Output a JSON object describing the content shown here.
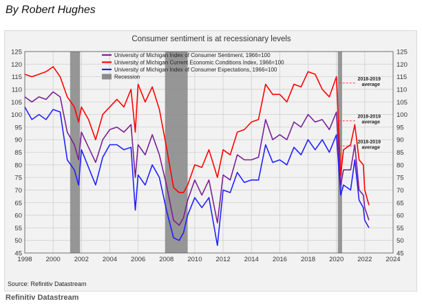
{
  "byline": "By Robert Hughes",
  "source_note": "Source: Refinitiv Datastream",
  "credit": "Refinitiv Datastream",
  "colors": {
    "sentiment": "#7a1f94",
    "current": "#ff0000",
    "expectations": "#1f1fff",
    "recession": "#8c8c8c",
    "average_line": "#ff3b3b"
  },
  "chart_data": {
    "type": "line",
    "title": "Consumer sentiment is at recessionary levels",
    "xlim": [
      1998,
      2024
    ],
    "ylim": [
      45,
      125
    ],
    "x_ticks": [
      1998,
      2000,
      2002,
      2004,
      2006,
      2008,
      2010,
      2012,
      2014,
      2016,
      2018,
      2020,
      2022,
      2024
    ],
    "y_ticks": [
      45,
      50,
      55,
      60,
      65,
      70,
      75,
      80,
      85,
      90,
      95,
      100,
      105,
      110,
      115,
      120,
      125
    ],
    "grid": true,
    "legend_position": "top-left",
    "recessions": [
      {
        "label": "Recession",
        "start": 2001.2,
        "end": 2001.9
      },
      {
        "label": "Recession",
        "start": 2007.9,
        "end": 2009.5
      },
      {
        "label": "Recession",
        "start": 2020.1,
        "end": 2020.4
      }
    ],
    "averages": [
      {
        "label_line1": "2018-2019",
        "label_line2": "average",
        "value": 112.5,
        "series": "current"
      },
      {
        "label_line1": "2018-2019",
        "label_line2": "average",
        "value": 97.5,
        "series": "sentiment"
      },
      {
        "label_line1": "2018-2019",
        "label_line2": "average",
        "value": 87.5,
        "series": "expectations"
      }
    ],
    "series": [
      {
        "key": "sentiment",
        "name": "University of Michigan Index of Consumer Sentiment, 1966=100",
        "x": [
          1998,
          1998.5,
          1999,
          1999.5,
          2000,
          2000.5,
          2001,
          2001.5,
          2001.8,
          2002,
          2002.5,
          2003,
          2003.5,
          2004,
          2004.5,
          2005,
          2005.5,
          2005.8,
          2006,
          2006.5,
          2007,
          2007.5,
          2008,
          2008.5,
          2008.9,
          2009.2,
          2009.5,
          2010,
          2010.5,
          2011,
          2011.6,
          2012,
          2012.5,
          2013,
          2013.5,
          2014,
          2014.5,
          2015,
          2015.5,
          2016,
          2016.5,
          2017,
          2017.5,
          2018,
          2018.5,
          2019,
          2019.5,
          2020,
          2020.3,
          2020.5,
          2021,
          2021.3,
          2021.6,
          2021.9,
          2022,
          2022.3
        ],
        "y": [
          107,
          105,
          107,
          106,
          109,
          107,
          93,
          88,
          82,
          93,
          87,
          81,
          90,
          94,
          95,
          93,
          96,
          75,
          88,
          84,
          92,
          84,
          72,
          58,
          56,
          59,
          66,
          74,
          68,
          74,
          57,
          76,
          74,
          84,
          82,
          82,
          83,
          98,
          90,
          92,
          90,
          97,
          95,
          100,
          97,
          98,
          94,
          101,
          72,
          78,
          78,
          88,
          70,
          68,
          63,
          58
        ]
      },
      {
        "key": "current",
        "name": "University of Michigan Current Economic Conditions Index, 1966=100",
        "x": [
          1998,
          1998.5,
          1999,
          1999.5,
          2000,
          2000.5,
          2001,
          2001.5,
          2001.8,
          2002,
          2002.5,
          2003,
          2003.5,
          2004,
          2004.5,
          2005,
          2005.5,
          2005.8,
          2006,
          2006.5,
          2007,
          2007.5,
          2008,
          2008.5,
          2008.9,
          2009.2,
          2009.5,
          2010,
          2010.5,
          2011,
          2011.6,
          2012,
          2012.5,
          2013,
          2013.5,
          2014,
          2014.5,
          2015,
          2015.5,
          2016,
          2016.5,
          2017,
          2017.5,
          2018,
          2018.5,
          2019,
          2019.5,
          2020,
          2020.3,
          2020.5,
          2021,
          2021.3,
          2021.6,
          2021.9,
          2022,
          2022.3
        ],
        "y": [
          116,
          115,
          116,
          117,
          119,
          115,
          107,
          103,
          97,
          103,
          98,
          90,
          100,
          103,
          106,
          103,
          110,
          93,
          112,
          105,
          111,
          102,
          87,
          71,
          69,
          69,
          72,
          80,
          79,
          86,
          75,
          86,
          84,
          93,
          94,
          97,
          98,
          112,
          108,
          108,
          105,
          112,
          111,
          117,
          116,
          110,
          107,
          115,
          76,
          86,
          88,
          96,
          82,
          80,
          70,
          64
        ]
      },
      {
        "key": "expectations",
        "name": "University of Michigan Index of Consumer Expectations, 1966=100",
        "x": [
          1998,
          1998.5,
          1999,
          1999.5,
          2000,
          2000.5,
          2001,
          2001.5,
          2001.8,
          2002,
          2002.5,
          2003,
          2003.5,
          2004,
          2004.5,
          2005,
          2005.5,
          2005.8,
          2006,
          2006.5,
          2007,
          2007.5,
          2008,
          2008.5,
          2008.9,
          2009.2,
          2009.5,
          2010,
          2010.5,
          2011,
          2011.6,
          2012,
          2012.5,
          2013,
          2013.5,
          2014,
          2014.5,
          2015,
          2015.5,
          2016,
          2016.5,
          2017,
          2017.5,
          2018,
          2018.5,
          2019,
          2019.5,
          2020,
          2020.3,
          2020.5,
          2021,
          2021.3,
          2021.6,
          2021.9,
          2022,
          2022.3
        ],
        "y": [
          103,
          98,
          100,
          98,
          102,
          101,
          82,
          78,
          72,
          86,
          79,
          72,
          83,
          88,
          88,
          86,
          87,
          62,
          76,
          72,
          80,
          75,
          62,
          51,
          50,
          53,
          60,
          67,
          63,
          67,
          48,
          70,
          69,
          77,
          73,
          74,
          74,
          88,
          81,
          82,
          80,
          87,
          84,
          90,
          86,
          90,
          85,
          92,
          68,
          72,
          70,
          82,
          66,
          63,
          58,
          55
        ]
      }
    ]
  }
}
